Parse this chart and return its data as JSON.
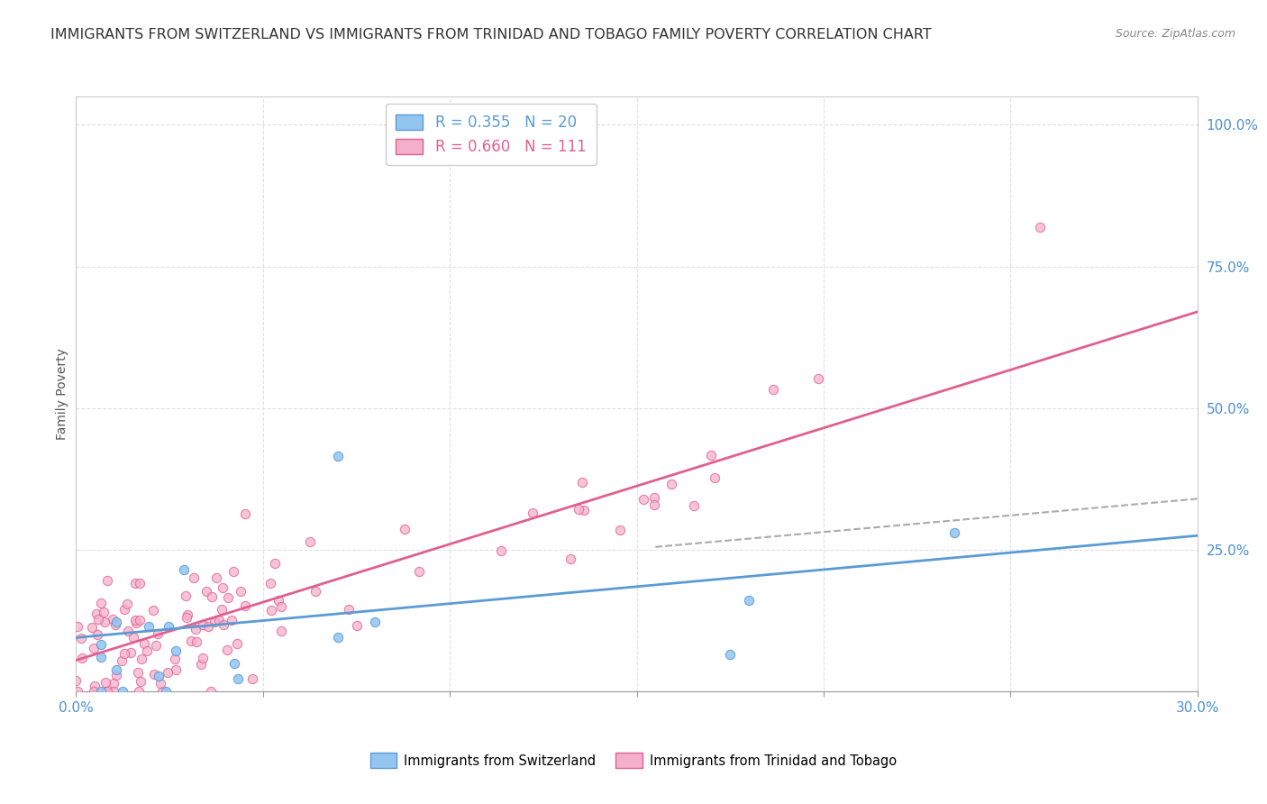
{
  "title": "IMMIGRANTS FROM SWITZERLAND VS IMMIGRANTS FROM TRINIDAD AND TOBAGO FAMILY POVERTY CORRELATION CHART",
  "source": "Source: ZipAtlas.com",
  "ylabel": "Family Poverty",
  "xlim": [
    0.0,
    0.3
  ],
  "ylim": [
    0.0,
    1.05
  ],
  "xticks": [
    0.0,
    0.05,
    0.1,
    0.15,
    0.2,
    0.25,
    0.3
  ],
  "xticklabels": [
    "0.0%",
    "",
    "",
    "",
    "",
    "",
    "30.0%"
  ],
  "yticks_right": [
    0.0,
    0.25,
    0.5,
    0.75,
    1.0
  ],
  "yticklabels_right": [
    "",
    "25.0%",
    "50.0%",
    "75.0%",
    "100.0%"
  ],
  "sw_color": "#92C5F0",
  "sw_edge": "#5B9BD5",
  "tt_color": "#F4AFCA",
  "tt_edge": "#E06090",
  "reg_sw": [
    0.0,
    0.095,
    0.3,
    0.275
  ],
  "reg_tt": [
    0.0,
    0.055,
    0.3,
    0.67
  ],
  "dash_line": [
    0.155,
    0.255,
    0.3,
    0.34
  ],
  "sw_R": 0.355,
  "sw_N": 20,
  "tt_R": 0.66,
  "tt_N": 111,
  "sw_name": "Immigrants from Switzerland",
  "tt_name": "Immigrants from Trinidad and Tobago",
  "bg_color": "#ffffff",
  "grid_color": "#e0e0e0",
  "axis_color": "#4A90D9",
  "title_color": "#333333",
  "marker_size": 55,
  "title_fontsize": 11.5,
  "source_fontsize": 9,
  "legend_fontsize": 12
}
